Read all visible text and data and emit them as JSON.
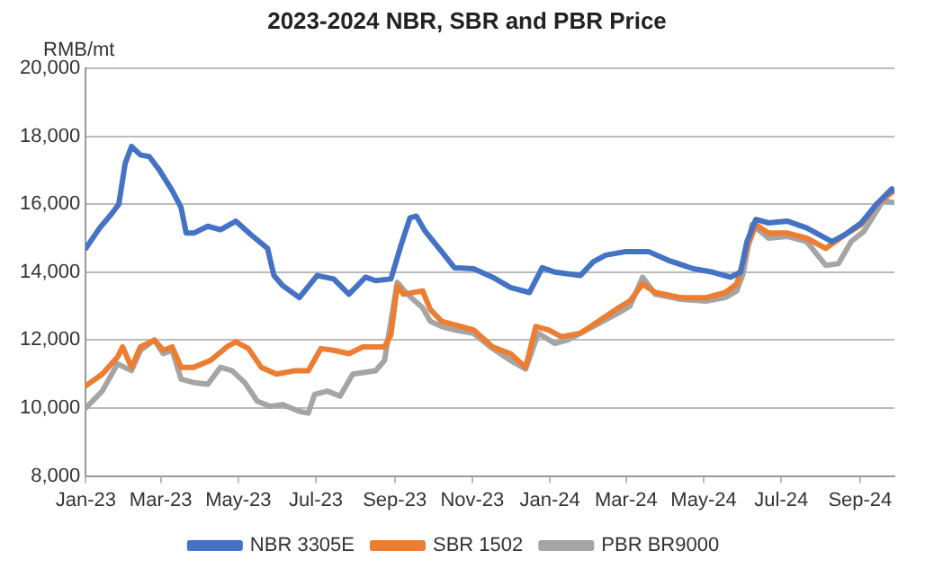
{
  "chart_data": {
    "type": "line",
    "title": "2023-2024  NBR, SBR and PBR Price",
    "ylabel": "RMB/mt",
    "xlim": [
      "2023-01-01",
      "2024-09-28"
    ],
    "xticks": [
      {
        "value": "2023-01-01",
        "label": "Jan-23"
      },
      {
        "value": "2023-03-01",
        "label": "Mar-23"
      },
      {
        "value": "2023-05-01",
        "label": "May-23"
      },
      {
        "value": "2023-07-01",
        "label": "Jul-23"
      },
      {
        "value": "2023-09-01",
        "label": "Sep-23"
      },
      {
        "value": "2023-11-01",
        "label": "Nov-23"
      },
      {
        "value": "2024-01-01",
        "label": "Jan-24"
      },
      {
        "value": "2024-03-01",
        "label": "Mar-24"
      },
      {
        "value": "2024-05-01",
        "label": "May-24"
      },
      {
        "value": "2024-07-01",
        "label": "Jul-24"
      },
      {
        "value": "2024-09-01",
        "label": "Sep-24"
      }
    ],
    "ylim": [
      8000,
      20000
    ],
    "yticks": [
      {
        "value": 8000,
        "label": "8,000"
      },
      {
        "value": 10000,
        "label": "10,000"
      },
      {
        "value": 12000,
        "label": "12,000"
      },
      {
        "value": 14000,
        "label": "14,000"
      },
      {
        "value": 16000,
        "label": "16,000"
      },
      {
        "value": 18000,
        "label": "18,000"
      },
      {
        "value": 20000,
        "label": "20,000"
      }
    ],
    "grid": "y",
    "legend": "bottom",
    "marker": "none",
    "line_style": "solid",
    "series": [
      {
        "name": "NBR 3305E",
        "color": "#4472c4",
        "x": [
          "2023-01-01",
          "2023-01-12",
          "2023-01-21",
          "2023-01-27",
          "2023-02-01",
          "2023-02-06",
          "2023-02-13",
          "2023-02-20",
          "2023-02-28",
          "2023-03-10",
          "2023-03-17",
          "2023-03-21",
          "2023-03-27",
          "2023-04-07",
          "2023-04-17",
          "2023-04-29",
          "2023-05-11",
          "2023-05-24",
          "2023-05-29",
          "2023-06-05",
          "2023-06-18",
          "2023-07-02",
          "2023-07-15",
          "2023-07-27",
          "2023-08-09",
          "2023-08-17",
          "2023-08-29",
          "2023-09-06",
          "2023-09-13",
          "2023-09-18",
          "2023-09-25",
          "2023-10-08",
          "2023-10-18",
          "2023-11-02",
          "2023-11-17",
          "2023-12-01",
          "2023-12-16",
          "2023-12-26",
          "2024-01-05",
          "2024-01-25",
          "2024-02-04",
          "2024-02-14",
          "2024-02-29",
          "2024-03-19",
          "2024-04-03",
          "2024-04-23",
          "2024-05-08",
          "2024-05-22",
          "2024-05-30",
          "2024-06-04",
          "2024-06-11",
          "2024-06-21",
          "2024-07-06",
          "2024-07-21",
          "2024-08-10",
          "2024-08-20",
          "2024-09-02",
          "2024-09-14",
          "2024-09-26",
          "2024-09-27"
        ],
        "values": [
          14700,
          15300,
          15700,
          16000,
          17200,
          17700,
          17450,
          17400,
          17000,
          16400,
          15900,
          15150,
          15150,
          15350,
          15250,
          15500,
          15100,
          14700,
          13900,
          13600,
          13250,
          13900,
          13800,
          13350,
          13850,
          13750,
          13800,
          14800,
          15600,
          15650,
          15200,
          14600,
          14130,
          14100,
          13850,
          13550,
          13400,
          14130,
          14000,
          13900,
          14300,
          14500,
          14600,
          14600,
          14350,
          14100,
          14000,
          13850,
          14000,
          14900,
          15550,
          15450,
          15500,
          15300,
          14900,
          15100,
          15450,
          16000,
          16450,
          16400
        ]
      },
      {
        "name": "SBR 1502",
        "color": "#ed7d31",
        "x": [
          "2023-01-01",
          "2023-01-14",
          "2023-01-26",
          "2023-01-30",
          "2023-02-06",
          "2023-02-13",
          "2023-02-24",
          "2023-03-03",
          "2023-03-10",
          "2023-03-17",
          "2023-03-27",
          "2023-04-09",
          "2023-04-22",
          "2023-04-29",
          "2023-05-09",
          "2023-05-19",
          "2023-05-31",
          "2023-06-15",
          "2023-06-25",
          "2023-07-05",
          "2023-07-15",
          "2023-07-27",
          "2023-08-07",
          "2023-08-24",
          "2023-08-29",
          "2023-09-03",
          "2023-09-08",
          "2023-09-23",
          "2023-09-29",
          "2023-10-08",
          "2023-10-18",
          "2023-11-02",
          "2023-11-17",
          "2023-12-01",
          "2023-12-13",
          "2023-12-21",
          "2023-12-31",
          "2024-01-10",
          "2024-01-25",
          "2024-02-04",
          "2024-02-24",
          "2024-03-04",
          "2024-03-14",
          "2024-03-24",
          "2024-04-13",
          "2024-05-03",
          "2024-05-18",
          "2024-05-27",
          "2024-06-04",
          "2024-06-11",
          "2024-06-21",
          "2024-07-06",
          "2024-07-21",
          "2024-08-05",
          "2024-08-20",
          "2024-09-02",
          "2024-09-14",
          "2024-09-28"
        ],
        "values": [
          10650,
          11000,
          11500,
          11800,
          11200,
          11800,
          12000,
          11700,
          11800,
          11200,
          11200,
          11400,
          11800,
          11950,
          11750,
          11200,
          11000,
          11100,
          11100,
          11750,
          11700,
          11600,
          11800,
          11800,
          12150,
          13600,
          13350,
          13450,
          12900,
          12550,
          12450,
          12300,
          11800,
          11600,
          11200,
          12400,
          12300,
          12100,
          12200,
          12450,
          12950,
          13150,
          13650,
          13400,
          13250,
          13250,
          13400,
          13650,
          14700,
          15400,
          15150,
          15150,
          15000,
          14700,
          15100,
          15400,
          16000,
          16400
        ]
      },
      {
        "name": "PBR BR9000",
        "color": "#a5a5a5",
        "x": [
          "2023-01-01",
          "2023-01-14",
          "2023-01-26",
          "2023-02-06",
          "2023-02-13",
          "2023-02-24",
          "2023-03-03",
          "2023-03-10",
          "2023-03-17",
          "2023-03-27",
          "2023-04-07",
          "2023-04-17",
          "2023-04-26",
          "2023-05-06",
          "2023-05-16",
          "2023-05-26",
          "2023-06-05",
          "2023-06-18",
          "2023-06-25",
          "2023-06-30",
          "2023-07-10",
          "2023-07-20",
          "2023-07-30",
          "2023-08-17",
          "2023-08-24",
          "2023-08-29",
          "2023-09-03",
          "2023-09-11",
          "2023-09-23",
          "2023-09-29",
          "2023-10-08",
          "2023-10-18",
          "2023-11-02",
          "2023-11-17",
          "2023-12-01",
          "2023-12-13",
          "2023-12-23",
          "2024-01-05",
          "2024-01-15",
          "2024-01-30",
          "2024-02-24",
          "2024-03-04",
          "2024-03-14",
          "2024-03-24",
          "2024-04-13",
          "2024-05-03",
          "2024-05-18",
          "2024-05-27",
          "2024-06-01",
          "2024-06-08",
          "2024-06-21",
          "2024-07-06",
          "2024-07-21",
          "2024-08-05",
          "2024-08-15",
          "2024-08-25",
          "2024-09-04",
          "2024-09-19",
          "2024-09-27"
        ],
        "values": [
          10000,
          10500,
          11300,
          11100,
          11700,
          12000,
          11600,
          11700,
          10850,
          10750,
          10700,
          11200,
          11100,
          10750,
          10200,
          10050,
          10100,
          9900,
          9850,
          10400,
          10500,
          10350,
          11000,
          11100,
          11400,
          12550,
          13700,
          13350,
          12950,
          12550,
          12400,
          12300,
          12200,
          11750,
          11400,
          11150,
          12200,
          11900,
          12000,
          12300,
          12800,
          13000,
          13850,
          13350,
          13200,
          13150,
          13250,
          13450,
          13950,
          15400,
          15000,
          15050,
          14900,
          14200,
          14250,
          14900,
          15200,
          16100,
          16050
        ]
      }
    ]
  }
}
